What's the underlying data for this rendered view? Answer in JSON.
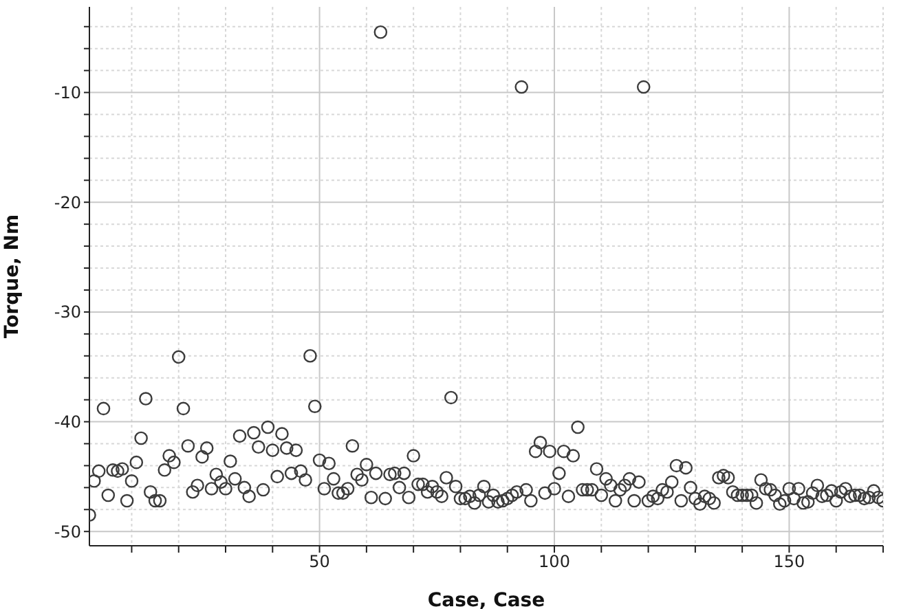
{
  "chart_data": {
    "type": "scatter",
    "xlabel": "Case, Case",
    "ylabel": "Torque, Nm",
    "x": [
      1,
      2,
      3,
      4,
      5,
      6,
      7,
      8,
      9,
      10,
      11,
      12,
      13,
      14,
      15,
      16,
      17,
      18,
      19,
      20,
      21,
      22,
      23,
      24,
      25,
      26,
      27,
      28,
      29,
      30,
      31,
      32,
      33,
      34,
      35,
      36,
      37,
      38,
      39,
      40,
      41,
      42,
      43,
      44,
      45,
      46,
      47,
      48,
      49,
      50,
      51,
      52,
      53,
      54,
      55,
      56,
      57,
      58,
      59,
      60,
      61,
      62,
      63,
      64,
      65,
      66,
      67,
      68,
      69,
      70,
      71,
      72,
      73,
      74,
      75,
      76,
      77,
      78,
      79,
      80,
      81,
      82,
      83,
      84,
      85,
      86,
      87,
      88,
      89,
      90,
      91,
      92,
      93,
      94,
      95,
      96,
      97,
      98,
      99,
      100,
      101,
      102,
      103,
      104,
      105,
      106,
      107,
      108,
      109,
      110,
      111,
      112,
      113,
      114,
      115,
      116,
      117,
      118,
      119,
      120,
      121,
      122,
      123,
      124,
      125,
      126,
      127,
      128,
      129,
      130,
      131,
      132,
      133,
      134,
      135,
      136,
      137,
      138,
      139,
      140,
      141,
      142,
      143,
      144,
      145,
      146,
      147,
      148,
      149,
      150,
      151,
      152,
      153,
      154,
      155,
      156,
      157,
      158,
      159,
      160,
      161,
      162,
      163,
      164,
      165,
      166,
      167,
      168,
      169,
      170
    ],
    "series": [
      {
        "color": "#3c3c3c",
        "values": [
          -48.5,
          -45.4,
          -44.5,
          -38.8,
          -46.7,
          -44.4,
          -44.5,
          -44.3,
          -47.2,
          -45.4,
          -43.7,
          -41.5,
          -37.9,
          -46.4,
          -47.2,
          -47.2,
          -44.4,
          -43.1,
          -43.7,
          -34.1,
          -38.8,
          -42.2,
          -46.4,
          -45.8,
          -43.2,
          -42.4,
          -46.1,
          -44.8,
          -45.5,
          -46.1,
          -43.6,
          -45.2,
          -41.3,
          -46.0,
          -46.8,
          -41.0,
          -42.3,
          -46.2,
          -40.5,
          -42.6,
          -45.0,
          -41.1,
          -42.4,
          -44.7,
          -42.6,
          -44.5,
          -45.3,
          -34.0,
          -38.6,
          -43.5,
          -46.1,
          -43.8,
          -45.2,
          -46.5,
          -46.5,
          -46.1,
          -42.2,
          -44.8,
          -45.3,
          -43.9,
          -46.9,
          -44.7,
          -4.5,
          -47.0,
          -44.8,
          -44.7,
          -46.0,
          -44.7,
          -46.9,
          -43.1,
          -45.7,
          -45.7,
          -46.4,
          -45.9,
          -46.4,
          -46.8,
          -45.1,
          -37.8,
          -45.9,
          -47.0,
          -47.0,
          -46.8,
          -47.4,
          -46.7,
          -45.9,
          -47.3,
          -46.7,
          -47.3,
          -47.2,
          -47.0,
          -46.7,
          -46.4,
          -9.5,
          -46.2,
          -47.2,
          -42.7,
          -41.9,
          -46.5,
          -42.7,
          -46.1,
          -44.7,
          -42.7,
          -46.8,
          -43.1,
          -40.5,
          -46.2,
          -46.2,
          -46.2,
          -44.3,
          -46.7,
          -45.2,
          -45.8,
          -47.2,
          -46.2,
          -45.8,
          -45.2,
          -47.2,
          -45.5,
          -9.5,
          -47.2,
          -46.8,
          -47.0,
          -46.2,
          -46.4,
          -45.5,
          -44.0,
          -47.2,
          -44.2,
          -46.0,
          -47.0,
          -47.5,
          -46.8,
          -47.0,
          -47.4,
          -45.1,
          -44.9,
          -45.1,
          -46.4,
          -46.7,
          -46.7,
          -46.7,
          -46.7,
          -47.4,
          -45.3,
          -46.1,
          -46.2,
          -46.7,
          -47.5,
          -47.2,
          -46.1,
          -47.0,
          -46.1,
          -47.4,
          -47.3,
          -46.5,
          -45.8,
          -46.8,
          -46.7,
          -46.3,
          -47.2,
          -46.4,
          -46.1,
          -46.8,
          -46.7,
          -46.7,
          -47.0,
          -46.9,
          -46.3,
          -46.9,
          -47.2
        ]
      }
    ],
    "xlim": [
      1,
      170
    ],
    "xticks": [
      {
        "value": 10,
        "label": null
      },
      {
        "value": 20,
        "label": null
      },
      {
        "value": 30,
        "label": null
      },
      {
        "value": 40,
        "label": null
      },
      50,
      {
        "value": 60,
        "label": null
      },
      {
        "value": 70,
        "label": null
      },
      {
        "value": 80,
        "label": null
      },
      {
        "value": 90,
        "label": null
      },
      100,
      {
        "value": 110,
        "label": null
      },
      {
        "value": 120,
        "label": null
      },
      {
        "value": 130,
        "label": null
      },
      {
        "value": 140,
        "label": null
      },
      150,
      {
        "value": 160,
        "label": null
      },
      {
        "value": 170,
        "label": null
      }
    ],
    "ylim": [
      -51.3,
      -2.2
    ],
    "yticks": [
      -50,
      {
        "value": -48,
        "label": null
      },
      {
        "value": -46,
        "label": null
      },
      {
        "value": -44,
        "label": null
      },
      {
        "value": -42,
        "label": null
      },
      -40,
      {
        "value": -38,
        "label": null
      },
      {
        "value": -36,
        "label": null
      },
      {
        "value": -34,
        "label": null
      },
      {
        "value": -32,
        "label": null
      },
      -30,
      {
        "value": -28,
        "label": null
      },
      {
        "value": -26,
        "label": null
      },
      {
        "value": -24,
        "label": null
      },
      {
        "value": -22,
        "label": null
      },
      -20,
      {
        "value": -18,
        "label": null
      },
      {
        "value": -16,
        "label": null
      },
      {
        "value": -14,
        "label": null
      },
      {
        "value": -12,
        "label": null
      },
      -10,
      {
        "value": -8,
        "label": null
      },
      {
        "value": -6,
        "label": null
      },
      {
        "value": -4,
        "label": null
      }
    ],
    "grid": true,
    "marker": "circle"
  }
}
